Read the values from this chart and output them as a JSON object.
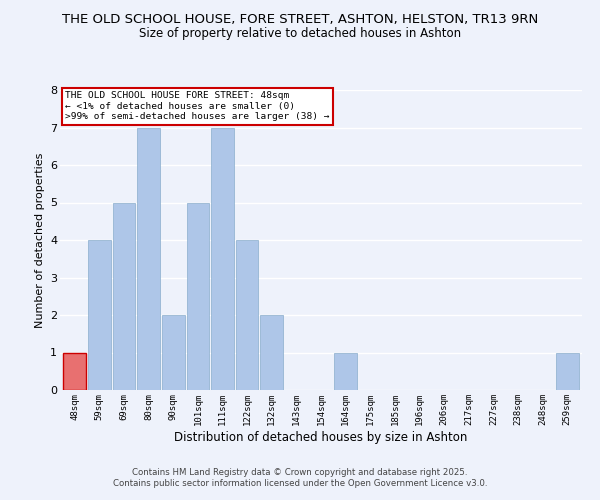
{
  "title": "THE OLD SCHOOL HOUSE, FORE STREET, ASHTON, HELSTON, TR13 9RN",
  "subtitle": "Size of property relative to detached houses in Ashton",
  "xlabel": "Distribution of detached houses by size in Ashton",
  "ylabel": "Number of detached properties",
  "categories": [
    "48sqm",
    "59sqm",
    "69sqm",
    "80sqm",
    "90sqm",
    "101sqm",
    "111sqm",
    "122sqm",
    "132sqm",
    "143sqm",
    "154sqm",
    "164sqm",
    "175sqm",
    "185sqm",
    "196sqm",
    "206sqm",
    "217sqm",
    "227sqm",
    "238sqm",
    "248sqm",
    "259sqm"
  ],
  "values": [
    1,
    4,
    5,
    7,
    2,
    5,
    7,
    4,
    2,
    0,
    0,
    1,
    0,
    0,
    0,
    0,
    0,
    0,
    0,
    0,
    1
  ],
  "bar_colors": [
    "#e87070",
    "#aec6e8",
    "#aec6e8",
    "#aec6e8",
    "#aec6e8",
    "#aec6e8",
    "#aec6e8",
    "#aec6e8",
    "#aec6e8",
    "#aec6e8",
    "#aec6e8",
    "#aec6e8",
    "#aec6e8",
    "#aec6e8",
    "#aec6e8",
    "#aec6e8",
    "#aec6e8",
    "#aec6e8",
    "#aec6e8",
    "#aec6e8",
    "#aec6e8"
  ],
  "ylim": [
    0,
    8
  ],
  "yticks": [
    0,
    1,
    2,
    3,
    4,
    5,
    6,
    7,
    8
  ],
  "annotation_box_text": "THE OLD SCHOOL HOUSE FORE STREET: 48sqm\n← <1% of detached houses are smaller (0)\n>99% of semi-detached houses are larger (38) →",
  "annotation_box_color": "#cc0000",
  "background_color": "#eef2fb",
  "grid_color": "#ffffff",
  "footer_line1": "Contains HM Land Registry data © Crown copyright and database right 2025.",
  "footer_line2": "Contains public sector information licensed under the Open Government Licence v3.0.",
  "title_fontsize": 9.5,
  "subtitle_fontsize": 8.5,
  "bar_edgecolor": "#aec6e8",
  "red_bar_edgecolor": "#cc0000"
}
